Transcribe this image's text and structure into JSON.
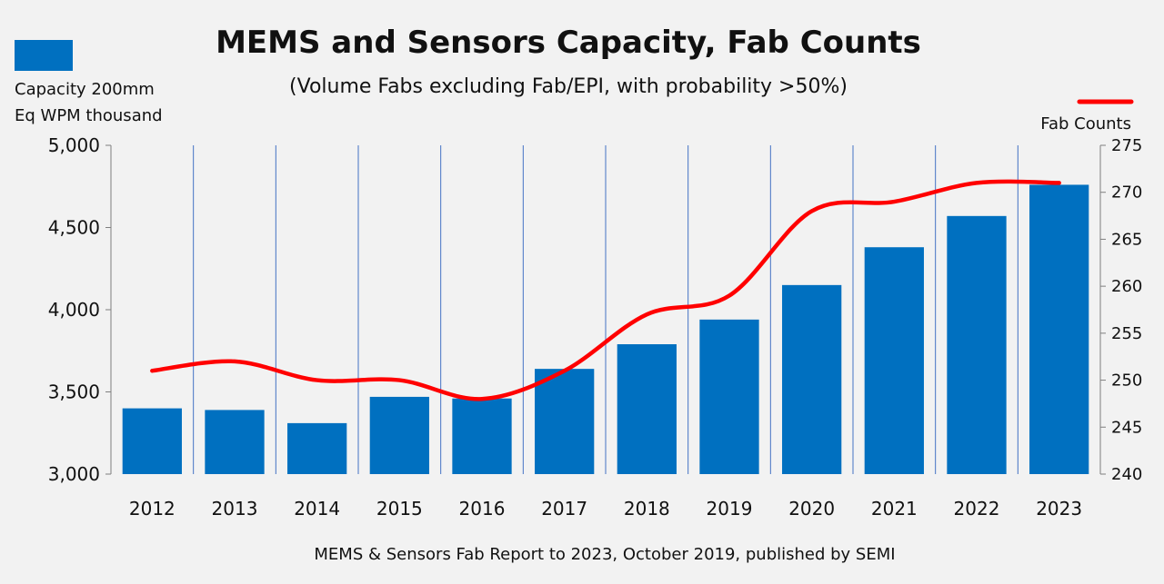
{
  "chart_data": {
    "type": "bar",
    "title": "MEMS and Sensors Capacity, Fab Counts",
    "subtitle": "(Volume Fabs excluding Fab/EPI, with probability >50%)",
    "source": "MEMS & Sensors Fab Report to 2023, October 2019, published by SEMI",
    "categories": [
      "2012",
      "2013",
      "2014",
      "2015",
      "2016",
      "2017",
      "2018",
      "2019",
      "2020",
      "2021",
      "2022",
      "2023"
    ],
    "series": [
      {
        "name": "Capacity 200mm Eq WPM thousand",
        "name_lines": [
          "Capacity 200mm",
          "Eq WPM thousand"
        ],
        "type": "bar",
        "axis": "left",
        "color": "#0070c0",
        "values": [
          3400,
          3390,
          3310,
          3470,
          3460,
          3640,
          3790,
          3940,
          4150,
          4380,
          4570,
          4760
        ]
      },
      {
        "name": "Fab Counts",
        "type": "line",
        "axis": "right",
        "color": "#ff0000",
        "values": [
          251,
          252,
          250,
          250,
          248,
          251,
          257,
          259,
          268,
          269,
          271,
          271
        ]
      }
    ],
    "y_left": {
      "lim": [
        3000,
        5000
      ],
      "ticks": [
        3000,
        3500,
        4000,
        4500,
        5000
      ],
      "tick_labels": [
        "3,000",
        "3,500",
        "4,000",
        "4,500",
        "5,000"
      ]
    },
    "y_right": {
      "lim": [
        240,
        275
      ],
      "ticks": [
        240,
        245,
        250,
        255,
        260,
        265,
        270,
        275
      ],
      "tick_labels": [
        "240",
        "245",
        "250",
        "255",
        "260",
        "265",
        "270",
        "275"
      ]
    },
    "grid": {
      "vertical_lines": true,
      "horizontal_lines": false,
      "vertical_color": "#4472c4"
    },
    "legend_placement": "top-left and top-right"
  }
}
